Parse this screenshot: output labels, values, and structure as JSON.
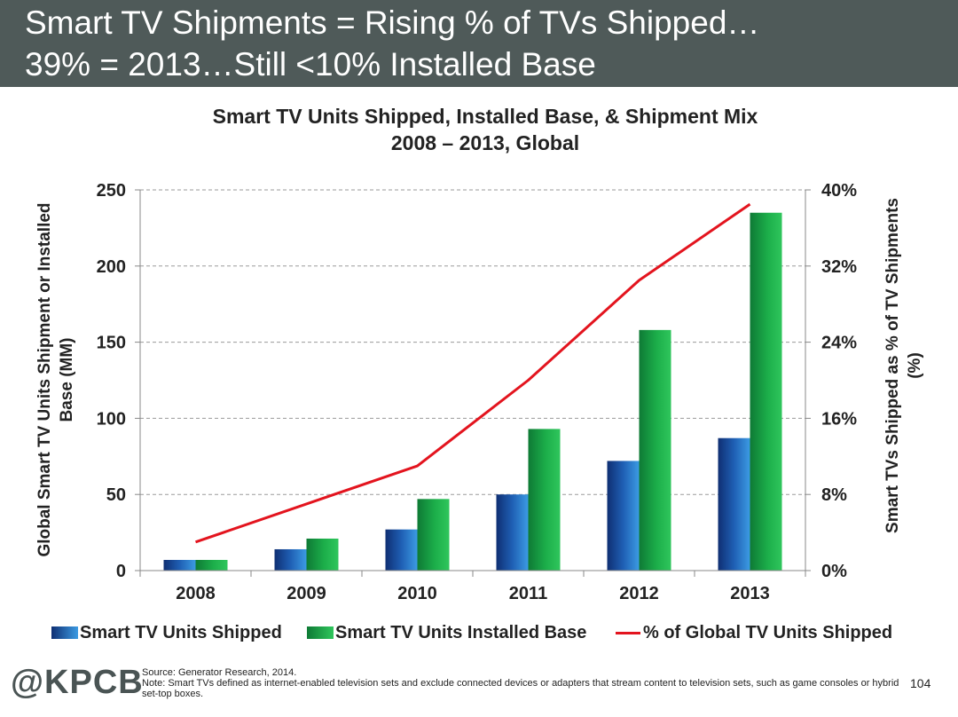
{
  "slide": {
    "title_line1": "Smart TV Shipments = Rising % of TVs Shipped…",
    "title_line2": "39% = 2013…Still <10% Installed Base",
    "source": "Source: Generator Research, 2014.",
    "note": "Note: Smart TVs defined as internet-enabled television sets and exclude connected devices or adapters that stream content to television sets, such as game consoles or hybrid set-top boxes.",
    "logo": "@KPCB",
    "page_number": "104"
  },
  "colors": {
    "header_bg": "#4f5a59",
    "shipped": "#1f5fb4",
    "installed": "#1cae4a",
    "pct_line": "#e3141e"
  },
  "chart_data": {
    "type": "bar",
    "title_line1": "Smart TV Units Shipped, Installed Base, & Shipment Mix",
    "title_line2": "2008 – 2013, Global",
    "ylabel_left": [
      "Global Smart TV Units Shipment or Installed",
      "Base (MM)"
    ],
    "ylabel_right": [
      "Smart TVs Shipped as % of TV Shipments",
      "(%)"
    ],
    "categories": [
      "2008",
      "2009",
      "2010",
      "2011",
      "2012",
      "2013"
    ],
    "ylim_left": [
      0,
      250
    ],
    "ylim_right": [
      0,
      40
    ],
    "yticks_left": [
      "0",
      "50",
      "100",
      "150",
      "200",
      "250"
    ],
    "yticks_right": [
      "0%",
      "8%",
      "16%",
      "24%",
      "32%",
      "40%"
    ],
    "grid": true,
    "legend_position": "bottom",
    "series": [
      {
        "name": "Smart TV Units Shipped",
        "type": "bar",
        "axis": "left",
        "values": [
          7,
          14,
          27,
          50,
          72,
          87
        ]
      },
      {
        "name": "Smart TV Units Installed Base",
        "type": "bar",
        "axis": "left",
        "values": [
          7,
          21,
          47,
          93,
          158,
          235
        ]
      },
      {
        "name": "% of Global TV Units Shipped",
        "type": "line",
        "axis": "right",
        "values": [
          3,
          7,
          11,
          20,
          30.5,
          38.5
        ]
      }
    ]
  }
}
